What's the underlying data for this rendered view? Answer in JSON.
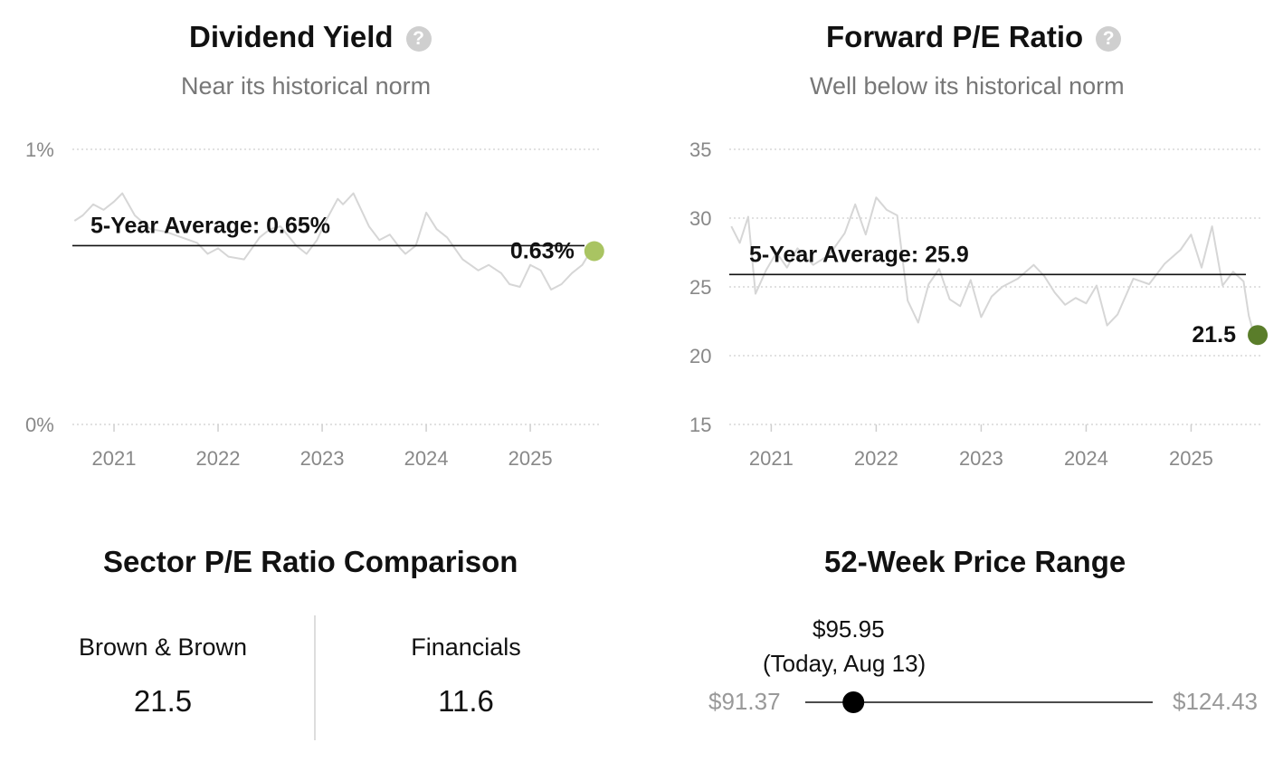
{
  "chart_data": [
    {
      "type": "line",
      "title": "Dividend Yield",
      "subtitle": "Near its historical norm",
      "y_ticks": [
        "0%",
        "1%"
      ],
      "x_ticks": [
        "2021",
        "2022",
        "2023",
        "2024",
        "2025"
      ],
      "ylim": [
        0,
        1
      ],
      "xlim": [
        2020.6,
        2025.66
      ],
      "unit": "%",
      "average": 0.65,
      "average_label": "5-Year Average: 0.65%",
      "current": 0.63,
      "current_label": "0.63%",
      "current_color": "#a9c462",
      "line_color": "#d6d6d6",
      "series": [
        {
          "x": [
            2020.62,
            2020.7,
            2020.8,
            2020.9,
            2021.0,
            2021.08,
            2021.2,
            2021.35,
            2021.5,
            2021.65,
            2021.8,
            2021.9,
            2022.0,
            2022.1,
            2022.25,
            2022.4,
            2022.5,
            2022.6,
            2022.75,
            2022.85,
            2022.95,
            2023.05,
            2023.15,
            2023.2,
            2023.3,
            2023.45,
            2023.55,
            2023.65,
            2023.75,
            2023.8,
            2023.9,
            2024.0,
            2024.1,
            2024.2,
            2024.35,
            2024.5,
            2024.6,
            2024.72,
            2024.8,
            2024.9,
            2025.0,
            2025.1,
            2025.2,
            2025.3,
            2025.4,
            2025.5,
            2025.58
          ],
          "y": [
            0.74,
            0.76,
            0.8,
            0.78,
            0.81,
            0.84,
            0.76,
            0.71,
            0.7,
            0.68,
            0.66,
            0.62,
            0.64,
            0.61,
            0.6,
            0.68,
            0.71,
            0.72,
            0.65,
            0.62,
            0.67,
            0.75,
            0.82,
            0.8,
            0.84,
            0.72,
            0.67,
            0.69,
            0.64,
            0.62,
            0.65,
            0.77,
            0.71,
            0.68,
            0.6,
            0.56,
            0.58,
            0.55,
            0.51,
            0.5,
            0.58,
            0.56,
            0.49,
            0.51,
            0.55,
            0.58,
            0.63
          ]
        }
      ]
    },
    {
      "type": "line",
      "title": "Forward P/E Ratio",
      "subtitle": "Well below its historical norm",
      "y_ticks": [
        "15",
        "20",
        "25",
        "30",
        "35"
      ],
      "x_ticks": [
        "2021",
        "2022",
        "2023",
        "2024",
        "2025"
      ],
      "ylim": [
        15,
        35
      ],
      "xlim": [
        2020.6,
        2025.66
      ],
      "average": 25.9,
      "average_label": "5-Year Average: 25.9",
      "current": 21.5,
      "current_label": "21.5",
      "current_color": "#5a7d2a",
      "line_color": "#d6d6d6",
      "series": [
        {
          "x": [
            2020.62,
            2020.7,
            2020.78,
            2020.85,
            2020.95,
            2021.05,
            2021.15,
            2021.25,
            2021.4,
            2021.55,
            2021.7,
            2021.8,
            2021.9,
            2022.0,
            2022.1,
            2022.2,
            2022.3,
            2022.4,
            2022.5,
            2022.6,
            2022.7,
            2022.8,
            2022.9,
            2023.0,
            2023.1,
            2023.2,
            2023.35,
            2023.5,
            2023.6,
            2023.7,
            2023.8,
            2023.9,
            2024.0,
            2024.1,
            2024.2,
            2024.3,
            2024.45,
            2024.6,
            2024.75,
            2024.9,
            2025.0,
            2025.1,
            2025.2,
            2025.3,
            2025.4,
            2025.5,
            2025.55,
            2025.6
          ],
          "y": [
            29.4,
            28.2,
            30.1,
            24.5,
            26.2,
            27.5,
            26.4,
            27.8,
            26.6,
            27.3,
            28.9,
            31.0,
            28.8,
            31.5,
            30.6,
            30.2,
            24.0,
            22.4,
            25.2,
            26.3,
            24.1,
            23.6,
            25.5,
            22.8,
            24.3,
            25.0,
            25.6,
            26.6,
            25.8,
            24.6,
            23.7,
            24.2,
            23.8,
            25.1,
            22.2,
            23.0,
            25.6,
            25.2,
            26.7,
            27.7,
            28.8,
            26.4,
            29.4,
            25.1,
            26.1,
            25.4,
            22.9,
            21.5
          ]
        }
      ]
    }
  ],
  "sector": {
    "title": "Sector P/E Ratio Comparison",
    "items": [
      {
        "name": "Brown & Brown",
        "value": "21.5"
      },
      {
        "name": "Financials",
        "value": "11.6"
      }
    ]
  },
  "range": {
    "title": "52-Week Price Range",
    "low": "$91.37",
    "high": "$124.43",
    "current": "$95.95",
    "current_note": "(Today, Aug 13)",
    "low_value": 91.37,
    "high_value": 124.43,
    "current_value": 95.95
  }
}
